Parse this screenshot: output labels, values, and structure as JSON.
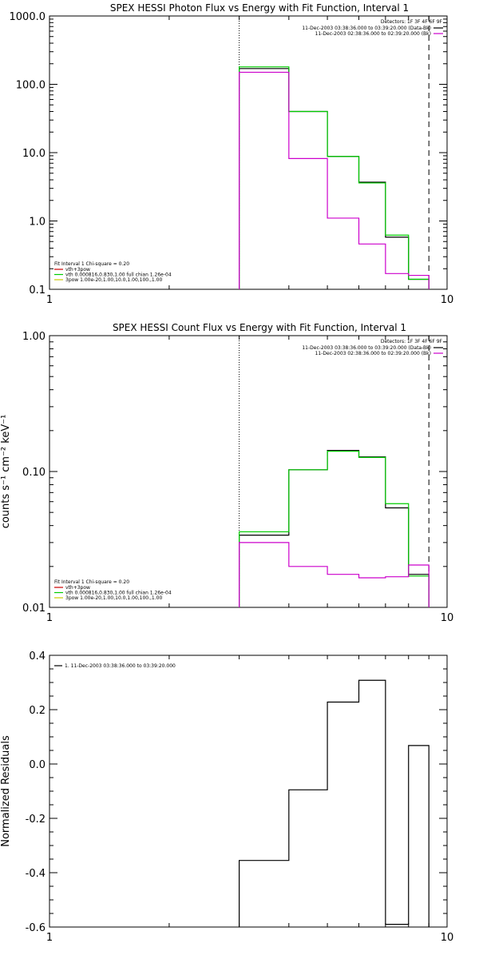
{
  "chart_data": [
    {
      "type": "line",
      "title": "SPEX HESSI Photon Flux vs Energy with Fit Function, Interval 1",
      "xlabel": "",
      "ylabel": "",
      "x_scale": "log",
      "y_scale": "log",
      "xlim": [
        1,
        10
      ],
      "ylim": [
        0.1,
        1000
      ],
      "x_ticks": [
        {
          "v": 1,
          "label": "1"
        },
        {
          "v": 10,
          "label": "10"
        }
      ],
      "y_ticks": [
        {
          "v": 0.1,
          "label": "0.1"
        },
        {
          "v": 1,
          "label": "1.0"
        },
        {
          "v": 10,
          "label": "10.0"
        },
        {
          "v": 100,
          "label": "100.0"
        },
        {
          "v": 1000,
          "label": "1000.0"
        }
      ],
      "vlines": [
        {
          "x": 3,
          "style": "dotted"
        },
        {
          "x": 9,
          "style": "dashed"
        }
      ],
      "legend_top": {
        "header": "Detectors: 1F 3F 4F 6F 9F",
        "items": [
          {
            "label": "11-Dec-2003 03:38:36.000 to 03:39:20.000 (Data-Bk)",
            "color": "#000000"
          },
          {
            "label": "11-Dec-2003 02:38:36.000 to 02:39:20.000 (Bk)",
            "color": "#cc00cc"
          }
        ]
      },
      "legend_bottom": {
        "header": "Fit Interval 1    Chi-square = 0.20",
        "items": [
          {
            "label": "vth+3pow",
            "color": "#cc0000"
          },
          {
            "label": "vth 0.000816,0.830,1.00  full chian 1.26e-04",
            "color": "#00cc00"
          },
          {
            "label": "3pow 1.00e-20,1.00,10.0,1.00,100.,1.00",
            "color": "#cccc00"
          }
        ]
      },
      "edges": [
        3,
        4,
        5,
        6,
        7,
        8,
        9
      ],
      "series": [
        {
          "color": "#000000",
          "values": [
            170,
            40,
            8.8,
            3.7,
            0.58,
            0.14
          ]
        },
        {
          "color": "#00cc00",
          "values": [
            180,
            40,
            8.8,
            3.6,
            0.62,
            0.14
          ]
        },
        {
          "color": "#cc00cc",
          "values": [
            150,
            8.2,
            1.1,
            0.46,
            0.17,
            0.16
          ]
        }
      ]
    },
    {
      "type": "line",
      "title": "SPEX HESSI Count Flux vs Energy with Fit Function, Interval 1",
      "xlabel": "",
      "ylabel": "counts s⁻¹ cm⁻² keV⁻¹",
      "x_scale": "log",
      "y_scale": "log",
      "xlim": [
        1,
        10
      ],
      "ylim": [
        0.01,
        1
      ],
      "x_ticks": [
        {
          "v": 1,
          "label": "1"
        },
        {
          "v": 10,
          "label": "10"
        }
      ],
      "y_ticks": [
        {
          "v": 0.01,
          "label": "0.01"
        },
        {
          "v": 0.1,
          "label": "0.10"
        },
        {
          "v": 1,
          "label": "1.00"
        }
      ],
      "vlines": [
        {
          "x": 3,
          "style": "dotted"
        },
        {
          "x": 9,
          "style": "dashed"
        }
      ],
      "legend_top": {
        "header": "Detectors: 1F 3F 4F 6F 9F",
        "items": [
          {
            "label": "11-Dec-2003 03:38:36.000 to 03:39:20.000 (Data-Bk)",
            "color": "#000000"
          },
          {
            "label": "11-Dec-2003 02:38:36.000 to 02:39:20.000 (Bk)",
            "color": "#cc00cc"
          }
        ]
      },
      "legend_bottom": {
        "header": "Fit Interval 1    Chi-square = 0.20",
        "items": [
          {
            "label": "vth+3pow",
            "color": "#cc0000"
          },
          {
            "label": "vth 0.000816,0.830,1.00  full chian 1.26e-04",
            "color": "#00cc00"
          },
          {
            "label": "3pow 1.00e-20,1.00,10.0,1.00,100.,1.00",
            "color": "#cccc00"
          }
        ]
      },
      "edges": [
        3,
        4,
        5,
        6,
        7,
        8,
        9
      ],
      "series": [
        {
          "color": "#000000",
          "values": [
            0.034,
            0.103,
            0.143,
            0.128,
            0.054,
            0.0175
          ]
        },
        {
          "color": "#00cc00",
          "values": [
            0.036,
            0.103,
            0.141,
            0.127,
            0.058,
            0.017
          ]
        },
        {
          "color": "#cc00cc",
          "values": [
            0.03,
            0.02,
            0.0175,
            0.0165,
            0.0168,
            0.0205
          ]
        }
      ]
    },
    {
      "type": "line",
      "title": "",
      "xlabel": "",
      "ylabel": "Normalized Residuals",
      "x_scale": "log",
      "y_scale": "linear",
      "xlim": [
        1,
        10
      ],
      "ylim": [
        -0.6,
        0.4
      ],
      "x_ticks": [
        {
          "v": 1,
          "label": "1"
        },
        {
          "v": 10,
          "label": "10"
        }
      ],
      "y_ticks": [
        {
          "v": -0.6,
          "label": "-0.6"
        },
        {
          "v": -0.4,
          "label": "-0.4"
        },
        {
          "v": -0.2,
          "label": "-0.2"
        },
        {
          "v": 0,
          "label": "0.0"
        },
        {
          "v": 0.2,
          "label": "0.2"
        },
        {
          "v": 0.4,
          "label": "0.4"
        }
      ],
      "legend_top_left": {
        "items": [
          {
            "label": "1. 11-Dec-2003 03:38:36.000 to 03:39:20.000",
            "color": "#000000"
          }
        ]
      },
      "edges": [
        3,
        4,
        5,
        6,
        7,
        8,
        9
      ],
      "series": [
        {
          "color": "#000000",
          "values": [
            -0.355,
            -0.095,
            0.228,
            0.308,
            -0.59,
            0.068
          ]
        }
      ]
    }
  ]
}
